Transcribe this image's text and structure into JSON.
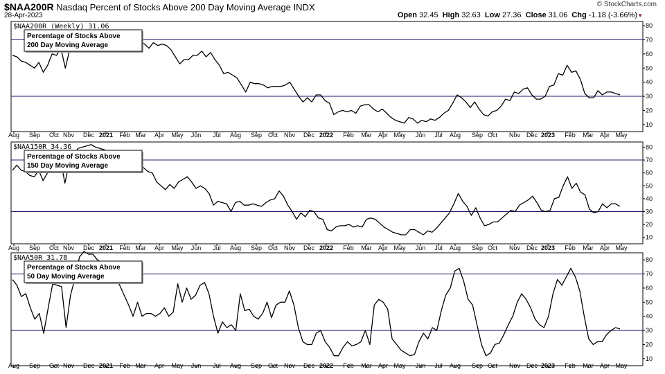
{
  "header": {
    "symbol": "$NAA200R",
    "description": "Nasdaq Percent of Stocks Above 200 Day Moving Average",
    "exchange": "INDX",
    "date": "28-Apr-2023",
    "open_label": "Open",
    "open": "32.45",
    "high_label": "High",
    "high": "32.63",
    "low_label": "Low",
    "low": "27.36",
    "close_label": "Close",
    "close": "31.06",
    "chg_label": "Chg",
    "chg": "-1.18 (-3.66%)",
    "chg_marker": "▼",
    "credit": "© StockCharts.com"
  },
  "colors": {
    "line": "#000000",
    "reference": "#1a1a6e",
    "border": "#000000",
    "background": "#ffffff"
  },
  "chart_data": [
    {
      "type": "line",
      "panel_label": "$NAA200R (Weekly) 31.06",
      "note_lines": [
        "Percentage of Stocks Above",
        "200 Day Moving Average"
      ],
      "ylim": [
        5,
        83
      ],
      "yticks": [
        10,
        20,
        30,
        40,
        50,
        60,
        70,
        80
      ],
      "reference_lines": [
        30,
        70
      ],
      "x_labels": [
        "Aug",
        "Sep",
        "Oct",
        "Nov",
        "Dec",
        "2021",
        "Feb",
        "Mar",
        "Apr",
        "May",
        "Jun",
        "Jul",
        "Aug",
        "Sep",
        "Oct",
        "Nov",
        "Dec",
        "2022",
        "Feb",
        "Mar",
        "Apr",
        "May",
        "Jun",
        "Jul",
        "Aug",
        "Sep",
        "Oct",
        "Nov",
        "Dec",
        "2023",
        "Feb",
        "Mar",
        "Apr",
        "May"
      ],
      "values": [
        59,
        58,
        55,
        54,
        52,
        50,
        54,
        47,
        52,
        60,
        59,
        64,
        50,
        63,
        70,
        76,
        78,
        79,
        80,
        78,
        77,
        76,
        74,
        73,
        73,
        74,
        72,
        70,
        71,
        69,
        67,
        64,
        68,
        66,
        67,
        66,
        63,
        58,
        53,
        56,
        56,
        59,
        59,
        62,
        58,
        61,
        56,
        52,
        46,
        47,
        45,
        43,
        38,
        33,
        40,
        39,
        39,
        38,
        36,
        37,
        37,
        37,
        38,
        40,
        35,
        30,
        26,
        29,
        26,
        31,
        31,
        27,
        25,
        17,
        19,
        20,
        19,
        20,
        18,
        23,
        24,
        24,
        21,
        19,
        21,
        18,
        15,
        13,
        12,
        11,
        15,
        14,
        11,
        13,
        12,
        14,
        13,
        15,
        18,
        20,
        25,
        31,
        29,
        26,
        22,
        26,
        21,
        17,
        16,
        19,
        20,
        23,
        28,
        27,
        33,
        32,
        35,
        36,
        31,
        28,
        28,
        30,
        37,
        38,
        46,
        45,
        52,
        47,
        48,
        42,
        32,
        29,
        29,
        34,
        31,
        33,
        33,
        32,
        31
      ]
    },
    {
      "type": "line",
      "panel_label": "$NAA150R 34.36",
      "note_lines": [
        "Percentage of Stocks Above",
        "150 Day Moving Average"
      ],
      "ylim": [
        5,
        84
      ],
      "yticks": [
        10,
        20,
        30,
        40,
        50,
        60,
        70,
        80
      ],
      "reference_lines": [
        30,
        70
      ],
      "x_labels": [
        "Aug",
        "Sep",
        "Oct",
        "Nov",
        "Dec",
        "2021",
        "Feb",
        "Mar",
        "Apr",
        "May",
        "Jun",
        "Jul",
        "Aug",
        "Sep",
        "Oct",
        "Nov",
        "Dec",
        "2022",
        "Feb",
        "Mar",
        "Apr",
        "May",
        "Jun",
        "Jul",
        "Aug",
        "Sep",
        "Oct",
        "Nov",
        "Dec",
        "2023",
        "Feb",
        "Mar",
        "Apr",
        "May"
      ],
      "values": [
        62,
        66,
        62,
        61,
        58,
        57,
        62,
        54,
        60,
        68,
        65,
        70,
        52,
        68,
        73,
        79,
        80,
        81,
        82,
        80,
        79,
        78,
        76,
        74,
        73,
        74,
        71,
        68,
        69,
        67,
        64,
        61,
        60,
        53,
        50,
        47,
        51,
        48,
        53,
        55,
        57,
        53,
        48,
        50,
        48,
        44,
        35,
        38,
        37,
        36,
        30,
        37,
        38,
        35,
        35,
        36,
        35,
        34,
        37,
        39,
        40,
        46,
        42,
        35,
        30,
        24,
        29,
        26,
        31,
        30,
        25,
        24,
        16,
        15,
        18,
        19,
        19,
        20,
        18,
        19,
        18,
        24,
        25,
        24,
        21,
        18,
        16,
        14,
        13,
        12,
        12,
        16,
        16,
        14,
        12,
        15,
        14,
        17,
        21,
        25,
        29,
        36,
        44,
        38,
        34,
        27,
        33,
        25,
        19,
        20,
        22,
        22,
        25,
        28,
        31,
        30,
        35,
        37,
        39,
        42,
        37,
        31,
        30,
        31,
        40,
        41,
        50,
        57,
        48,
        52,
        45,
        43,
        32,
        29,
        30,
        36,
        33,
        36,
        36,
        34
      ]
    },
    {
      "type": "line",
      "panel_label": "$NAA50R 31.78",
      "note_lines": [
        "Percentage of Stocks Above",
        "50 Day Moving Average"
      ],
      "ylim": [
        5,
        85
      ],
      "yticks": [
        10,
        20,
        30,
        40,
        50,
        60,
        70,
        80
      ],
      "reference_lines": [
        30,
        70
      ],
      "x_labels": [
        "Aug",
        "Sep",
        "Oct",
        "Nov",
        "Dec",
        "2021",
        "Feb",
        "Mar",
        "Apr",
        "May",
        "Jun",
        "Jul",
        "Aug",
        "Sep",
        "Oct",
        "Nov",
        "Dec",
        "2022",
        "Feb",
        "Mar",
        "Apr",
        "May",
        "Jun",
        "Jul",
        "Aug",
        "Sep",
        "Oct",
        "Nov",
        "Dec",
        "2023",
        "Feb",
        "Mar",
        "Apr",
        "May"
      ],
      "values": [
        66,
        62,
        54,
        56,
        46,
        38,
        42,
        28,
        46,
        63,
        62,
        61,
        32,
        55,
        67,
        82,
        86,
        84,
        84,
        80,
        78,
        76,
        72,
        68,
        62,
        55,
        48,
        40,
        50,
        40,
        42,
        42,
        40,
        42,
        46,
        40,
        43,
        63,
        50,
        60,
        52,
        55,
        62,
        64,
        56,
        40,
        28,
        36,
        32,
        34,
        30,
        56,
        44,
        45,
        40,
        38,
        42,
        50,
        39,
        48,
        50,
        50,
        58,
        48,
        32,
        22,
        20,
        20,
        28,
        30,
        22,
        18,
        12,
        12,
        18,
        22,
        19,
        20,
        22,
        30,
        20,
        48,
        52,
        50,
        45,
        24,
        20,
        16,
        14,
        12,
        13,
        22,
        28,
        24,
        32,
        30,
        44,
        55,
        60,
        72,
        74,
        65,
        52,
        48,
        34,
        20,
        12,
        14,
        20,
        21,
        27,
        34,
        40,
        50,
        56,
        52,
        46,
        38,
        34,
        32,
        40,
        56,
        66,
        62,
        68,
        74,
        68,
        58,
        40,
        24,
        20,
        22,
        22,
        27,
        30,
        32,
        31
      ]
    }
  ]
}
